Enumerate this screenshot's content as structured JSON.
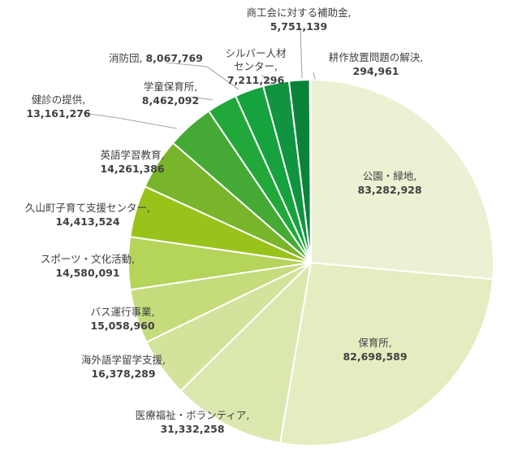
{
  "chart_data": {
    "type": "pie",
    "start_angle_deg": 0,
    "direction": "clockwise",
    "slices": [
      {
        "label": "公園・緑地",
        "value": 83282928,
        "value_text": "83,282,928",
        "color": "#ebf1d2"
      },
      {
        "label": "保育所",
        "value": 82698589,
        "value_text": "82,698,589",
        "color": "#e3edbf"
      },
      {
        "label": "医療福祉・ボランティア",
        "value": 31332258,
        "value_text": "31,332,258",
        "color": "#dae8b0"
      },
      {
        "label": "海外語学留学支援",
        "value": 16378289,
        "value_text": "16,378,289",
        "color": "#d2e49b"
      },
      {
        "label": "バス運行事業",
        "value": 15058960,
        "value_text": "15,058,960",
        "color": "#c4dc7c"
      },
      {
        "label": "スポーツ・文化活動",
        "value": 14580091,
        "value_text": "14,580,091",
        "color": "#b4d45a"
      },
      {
        "label": "久山町子育て支援センター",
        "value": 14413524,
        "value_text": "14,413,524",
        "color": "#99c31b"
      },
      {
        "label": "英語学習教育",
        "value": 14261386,
        "value_text": "14,261,386",
        "color": "#78b52a"
      },
      {
        "label": "健診の提供",
        "value": 13161276,
        "value_text": "13,161,276",
        "color": "#45a935"
      },
      {
        "label": "学童保育所",
        "value": 8462092,
        "value_text": "8,462,092",
        "color": "#22a83a"
      },
      {
        "label": "消防団",
        "value": 8067769,
        "value_text": "8,067,769",
        "color": "#16a23e"
      },
      {
        "label": "シルバー人材センター",
        "value": 7211296,
        "value_text": "7,211,296",
        "color": "#109440"
      },
      {
        "label": "商工会に対する補助金",
        "value": 5751139,
        "value_text": "5,751,139",
        "color": "#0a8339"
      },
      {
        "label": "耕作放置問題の解決",
        "value": 294961,
        "value_text": "294,961",
        "color": "#1e6b2a"
      }
    ]
  }
}
